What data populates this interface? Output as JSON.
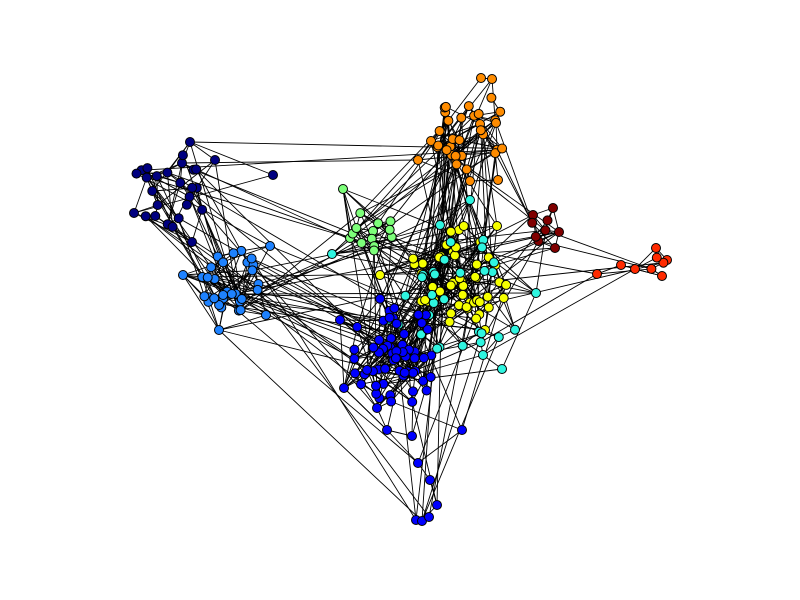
{
  "chart_data": {
    "type": "network",
    "title": "",
    "legend": false,
    "axes": false,
    "communities": [
      {
        "id": "navy",
        "color": "#000080"
      },
      {
        "id": "blue",
        "color": "#0000ff"
      },
      {
        "id": "dodger-blue",
        "color": "#1e82ff"
      },
      {
        "id": "cyan",
        "color": "#2ff5e0"
      },
      {
        "id": "light-green",
        "color": "#7dff7a"
      },
      {
        "id": "yellow",
        "color": "#f5ff00"
      },
      {
        "id": "orange",
        "color": "#ff8c00"
      },
      {
        "id": "red",
        "color": "#ff2a00"
      },
      {
        "id": "dark-red",
        "color": "#800000"
      }
    ],
    "node_radius": 4.5
  }
}
